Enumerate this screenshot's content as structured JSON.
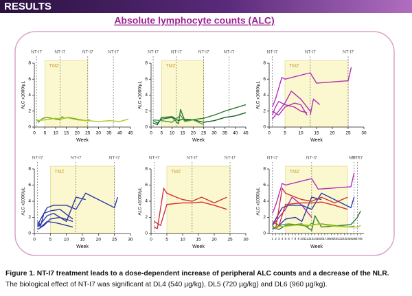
{
  "header": "RESULTS",
  "title": "Absolute lymphocyte counts (ALC)",
  "caption": [
    "Figure 1. NT-I7 treatment leads to a dose-dependent increase of peripheral ALC counts and a decrease of the NLR.",
    "The biological effect of NT-I7 was significant at DL4 (540 µg/kg), DL5 (720 µg/kg) and DL6 (960 µg/kg)."
  ],
  "chart_data": [
    {
      "type": "line",
      "x_label": "Week",
      "y_label": "ALC x1000/µL",
      "xlim": [
        0,
        45
      ],
      "xticks": [
        0,
        5,
        10,
        15,
        20,
        25,
        30,
        35,
        40,
        45
      ],
      "ylim": [
        0,
        8
      ],
      "yticks": [
        0,
        2,
        4,
        6,
        8
      ],
      "shade": {
        "label": "TMZ",
        "range": [
          5,
          25
        ]
      },
      "markers": {
        "label": "NT-I7",
        "x": [
          1,
          12,
          25,
          37
        ]
      },
      "series": [
        {
          "color": "#4fae2a",
          "x": [
            1,
            2,
            3,
            4,
            6,
            8,
            10,
            12,
            13,
            14,
            16,
            20,
            22,
            24,
            26
          ],
          "values": [
            1.0,
            0.6,
            0.9,
            1.1,
            1.2,
            1.1,
            1.0,
            0.9,
            1.3,
            1.1,
            1.2,
            1.0,
            0.9,
            0.8,
            0.9
          ]
        },
        {
          "color": "#b8c21e",
          "x": [
            1,
            5,
            10,
            13,
            15,
            20,
            25,
            30,
            35,
            40,
            44
          ],
          "values": [
            0.8,
            0.9,
            1.1,
            1.0,
            1.2,
            0.9,
            0.8,
            0.7,
            0.8,
            0.7,
            1.0
          ]
        }
      ]
    },
    {
      "type": "line",
      "x_label": "Week",
      "y_label": "ALC x1000/µL",
      "xlim": [
        0,
        45
      ],
      "xticks": [
        0,
        5,
        10,
        15,
        20,
        25,
        30,
        35,
        40,
        45
      ],
      "ylim": [
        0,
        8
      ],
      "yticks": [
        0,
        2,
        4,
        6,
        8
      ],
      "shade": {
        "label": "TMZ",
        "range": [
          5,
          25
        ]
      },
      "markers": {
        "label": "NT-I7",
        "x": [
          1,
          12,
          25,
          37
        ]
      },
      "series": [
        {
          "color": "#2e7d32",
          "x": [
            1,
            3,
            5,
            10,
            13,
            14,
            16,
            25,
            30,
            35,
            40,
            45
          ],
          "values": [
            0.8,
            0.5,
            1.0,
            1.2,
            0.4,
            2.2,
            0.8,
            1.1,
            1.5,
            2.0,
            2.4,
            2.8
          ]
        },
        {
          "color": "#1b5e20",
          "x": [
            1,
            3,
            5,
            10,
            13,
            15,
            20,
            25,
            30,
            35,
            40,
            45
          ],
          "values": [
            0.5,
            0.3,
            1.2,
            1.3,
            0.8,
            1.0,
            0.9,
            0.6,
            0.8,
            1.2,
            1.4,
            1.8
          ]
        },
        {
          "color": "#43a047",
          "x": [
            1,
            5,
            10,
            14,
            16,
            20,
            25
          ],
          "values": [
            0.9,
            0.8,
            0.6,
            1.5,
            0.7,
            0.9,
            0.3
          ]
        }
      ]
    },
    {
      "type": "line",
      "x_label": "Week",
      "y_label": "ALC x1000/µL",
      "xlim": [
        0,
        30
      ],
      "xticks": [
        0,
        5,
        10,
        15,
        20,
        25,
        30
      ],
      "ylim": [
        0,
        8
      ],
      "yticks": [
        0,
        2,
        4,
        6,
        8
      ],
      "shade": {
        "label": "TMZ",
        "range": [
          5,
          25
        ]
      },
      "markers": {
        "label": "NT-I7",
        "x": [
          1,
          13,
          25
        ]
      },
      "series": [
        {
          "color": "#b02eb5",
          "x": [
            1,
            2,
            4,
            5,
            13,
            15,
            25,
            26
          ],
          "values": [
            2.5,
            3.5,
            6.2,
            6.0,
            6.8,
            5.5,
            5.8,
            7.5
          ]
        },
        {
          "color": "#b02eb5",
          "x": [
            1,
            2,
            3,
            5,
            8,
            10,
            12
          ],
          "values": [
            1.5,
            2.5,
            3.2,
            2.8,
            2.5,
            2.0,
            1.8
          ]
        },
        {
          "color": "#b02eb5",
          "x": [
            1,
            3,
            5,
            7,
            10,
            13
          ],
          "values": [
            1.0,
            2.0,
            3.0,
            4.5,
            3.5,
            2.0
          ]
        },
        {
          "color": "#b02eb5",
          "x": [
            1,
            3,
            5,
            8,
            10,
            12
          ],
          "values": [
            2.0,
            1.5,
            2.5,
            3.0,
            2.8,
            1.5
          ]
        },
        {
          "color": "#b02eb5",
          "x": [
            13,
            14,
            16
          ],
          "values": [
            1.5,
            3.5,
            2.8
          ]
        }
      ]
    },
    {
      "type": "line",
      "x_label": "Week",
      "y_label": "ALC x1000/µL",
      "xlim": [
        0,
        30
      ],
      "xticks": [
        0,
        5,
        10,
        15,
        20,
        25,
        30
      ],
      "ylim": [
        0,
        8
      ],
      "yticks": [
        0,
        2,
        4,
        6,
        8
      ],
      "shade": {
        "label": "TMZ",
        "range": [
          5,
          25
        ]
      },
      "markers": {
        "label": "NT-I7",
        "x": [
          1,
          13,
          25
        ]
      },
      "series": [
        {
          "color": "#2a3aa8",
          "x": [
            1,
            2,
            4,
            6,
            10,
            13,
            16,
            20,
            25,
            26
          ],
          "values": [
            1.0,
            1.8,
            3.2,
            3.5,
            3.5,
            3.0,
            5.0,
            4.2,
            3.2,
            4.5
          ]
        },
        {
          "color": "#2a3aa8",
          "x": [
            1,
            2,
            4,
            6,
            8,
            12
          ],
          "values": [
            0.8,
            1.2,
            2.2,
            2.5,
            2.0,
            1.5
          ]
        },
        {
          "color": "#2a3aa8",
          "x": [
            1,
            2,
            3,
            5,
            8,
            12
          ],
          "values": [
            1.5,
            1.0,
            2.5,
            2.8,
            3.0,
            1.8
          ]
        },
        {
          "color": "#2a3aa8",
          "x": [
            1,
            3,
            5,
            8,
            10,
            13,
            16
          ],
          "values": [
            0.5,
            1.0,
            1.8,
            2.0,
            1.5,
            4.5,
            4.2
          ]
        },
        {
          "color": "#2a3aa8",
          "x": [
            1,
            2,
            4,
            7,
            12
          ],
          "values": [
            1.2,
            0.8,
            1.5,
            1.3,
            0.8
          ]
        }
      ]
    },
    {
      "type": "line",
      "x_label": "Week",
      "y_label": "ALC x1000/µL",
      "xlim": [
        0,
        30
      ],
      "xticks": [
        0,
        5,
        10,
        15,
        20,
        25,
        30
      ],
      "ylim": [
        0,
        8
      ],
      "yticks": [
        0,
        2,
        4,
        6,
        8
      ],
      "shade": {
        "label": "TMZ",
        "range": [
          5,
          25
        ]
      },
      "markers": {
        "label": "NT-I7",
        "x": [
          1,
          13,
          25
        ]
      },
      "series": [
        {
          "color": "#d32f2f",
          "x": [
            1,
            2,
            4,
            5,
            8,
            10,
            13,
            16,
            20,
            24
          ],
          "values": [
            0.8,
            0.6,
            5.6,
            5.0,
            4.5,
            4.2,
            4.0,
            4.5,
            3.8,
            4.5
          ]
        },
        {
          "color": "#d32f2f",
          "x": [
            1,
            3,
            5,
            10,
            13,
            16,
            20,
            24
          ],
          "values": [
            1.5,
            1.0,
            3.6,
            3.8,
            3.8,
            3.9,
            3.5,
            3.0
          ]
        }
      ]
    },
    {
      "type": "line",
      "x_label": "Week",
      "y_label": "ALC x1000/µL",
      "categories": [
        "1",
        "2",
        "3",
        "4",
        "5",
        "6",
        "7",
        "8",
        "9",
        "10",
        "11",
        "12",
        "13",
        "14",
        "15",
        "16",
        "17",
        "18",
        "19",
        "20",
        "21",
        "22",
        "23",
        "24",
        "25",
        "26",
        "37",
        "45"
      ],
      "ylim": [
        0,
        8
      ],
      "yticks": [
        0,
        2,
        4,
        6,
        8
      ],
      "shade": {
        "label": "TMZ",
        "range": [
          5,
          24
        ]
      },
      "markers": {
        "label": "NT-I7",
        "x": [
          1,
          13,
          26,
          37
        ]
      },
      "series": [
        {
          "color": "#b02eb5",
          "x": [
            1,
            2,
            4,
            5,
            13,
            15,
            25,
            26
          ],
          "values": [
            2.5,
            3.5,
            6.2,
            6.0,
            6.8,
            5.5,
            5.8,
            7.5
          ]
        },
        {
          "color": "#b02eb5",
          "x": [
            1,
            3,
            5,
            7,
            10,
            13
          ],
          "values": [
            1.0,
            2.0,
            3.0,
            4.5,
            3.5,
            2.0
          ]
        },
        {
          "color": "#2a3aa8",
          "x": [
            1,
            2,
            4,
            6,
            10,
            13,
            16,
            20,
            25,
            26
          ],
          "values": [
            1.0,
            1.8,
            3.2,
            3.5,
            3.5,
            3.0,
            5.0,
            4.2,
            3.2,
            4.5
          ]
        },
        {
          "color": "#2a3aa8",
          "x": [
            1,
            3,
            5,
            8,
            10,
            13,
            16
          ],
          "values": [
            0.5,
            1.0,
            1.8,
            2.0,
            1.5,
            4.5,
            4.2
          ]
        },
        {
          "color": "#d32f2f",
          "x": [
            1,
            2,
            4,
            5,
            8,
            10,
            13,
            16,
            20,
            24
          ],
          "values": [
            0.8,
            0.6,
            5.6,
            5.0,
            4.5,
            4.2,
            4.0,
            4.5,
            3.8,
            4.5
          ]
        },
        {
          "color": "#d32f2f",
          "x": [
            1,
            3,
            5,
            10,
            13,
            16,
            20,
            24
          ],
          "values": [
            1.5,
            1.0,
            3.6,
            3.8,
            3.8,
            3.9,
            3.5,
            3.0
          ]
        },
        {
          "color": "#2e7d32",
          "x": [
            1,
            3,
            5,
            10,
            13,
            14,
            16,
            25,
            37,
            45
          ],
          "values": [
            0.8,
            0.5,
            1.0,
            1.2,
            0.4,
            2.2,
            0.8,
            1.1,
            2.0,
            2.8
          ]
        },
        {
          "color": "#4fae2a",
          "x": [
            1,
            2,
            3,
            4,
            6,
            8,
            10,
            12,
            13,
            14,
            16,
            20,
            22,
            24,
            26
          ],
          "values": [
            1.0,
            0.6,
            0.9,
            1.1,
            1.2,
            1.1,
            1.0,
            0.9,
            1.3,
            1.1,
            1.2,
            1.0,
            0.9,
            0.8,
            0.9
          ]
        },
        {
          "color": "#b8c21e",
          "x": [
            1,
            5,
            10,
            13,
            15,
            20,
            25,
            37,
            45
          ],
          "values": [
            0.8,
            0.9,
            1.1,
            1.0,
            1.2,
            0.9,
            0.8,
            0.8,
            1.0
          ]
        }
      ]
    }
  ]
}
